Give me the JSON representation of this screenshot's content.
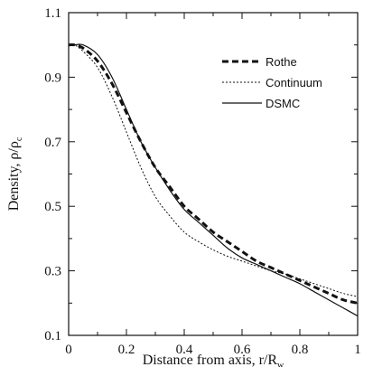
{
  "chart_data": {
    "type": "line",
    "xlabel": "Distance from axis, r/R",
    "xlabel_sub": "w",
    "ylabel": "Density, ρ/ρ",
    "ylabel_sub": "c",
    "xlim": [
      0,
      1
    ],
    "ylim": [
      0.1,
      1.1
    ],
    "x_ticks": [
      "0",
      "0.2",
      "0.4",
      "0.6",
      "0.8",
      "1"
    ],
    "y_ticks": [
      "0.1",
      "0.3",
      "0.5",
      "0.7",
      "0.9",
      "1.1"
    ],
    "legend_position": "top-right",
    "series": [
      {
        "name": "Rothe",
        "style": "dashed-thick",
        "x": [
          0,
          0.02,
          0.05,
          0.1,
          0.15,
          0.2,
          0.25,
          0.3,
          0.35,
          0.4,
          0.45,
          0.5,
          0.55,
          0.6,
          0.65,
          0.7,
          0.75,
          0.8,
          0.85,
          0.9,
          0.95,
          1.0
        ],
        "y": [
          1.0,
          1.0,
          0.99,
          0.95,
          0.88,
          0.79,
          0.7,
          0.62,
          0.56,
          0.5,
          0.46,
          0.42,
          0.39,
          0.36,
          0.33,
          0.31,
          0.29,
          0.27,
          0.25,
          0.23,
          0.21,
          0.2
        ]
      },
      {
        "name": "Continuum",
        "style": "dotted",
        "x": [
          0,
          0.02,
          0.05,
          0.1,
          0.15,
          0.2,
          0.25,
          0.3,
          0.35,
          0.4,
          0.45,
          0.5,
          0.55,
          0.6,
          0.65,
          0.7,
          0.75,
          0.8,
          0.85,
          0.9,
          0.95,
          1.0
        ],
        "y": [
          1.0,
          1.0,
          0.98,
          0.93,
          0.84,
          0.73,
          0.62,
          0.53,
          0.47,
          0.42,
          0.39,
          0.365,
          0.345,
          0.33,
          0.315,
          0.3,
          0.29,
          0.275,
          0.26,
          0.245,
          0.23,
          0.22
        ]
      },
      {
        "name": "DSMC",
        "style": "solid",
        "x": [
          0,
          0.02,
          0.05,
          0.1,
          0.15,
          0.2,
          0.25,
          0.3,
          0.35,
          0.4,
          0.45,
          0.5,
          0.55,
          0.6,
          0.65,
          0.7,
          0.75,
          0.8,
          0.85,
          0.9,
          0.95,
          1.0
        ],
        "y": [
          1.0,
          1.0,
          1.0,
          0.97,
          0.9,
          0.8,
          0.7,
          0.62,
          0.55,
          0.49,
          0.45,
          0.41,
          0.37,
          0.34,
          0.32,
          0.3,
          0.28,
          0.26,
          0.235,
          0.21,
          0.185,
          0.16
        ]
      }
    ]
  }
}
